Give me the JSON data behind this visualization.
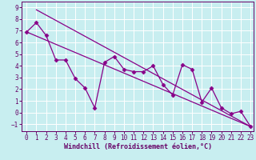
{
  "title": "",
  "xlabel": "Windchill (Refroidissement éolien,°C)",
  "ylabel": "",
  "bg_color": "#c8eef0",
  "line_color": "#880088",
  "grid_color": "#ffffff",
  "xlim": [
    -0.5,
    23.3
  ],
  "ylim": [
    -1.6,
    9.5
  ],
  "xticks": [
    0,
    1,
    2,
    3,
    4,
    5,
    6,
    7,
    8,
    9,
    10,
    11,
    12,
    13,
    14,
    15,
    16,
    17,
    18,
    19,
    20,
    21,
    22,
    23
  ],
  "yticks": [
    -1,
    0,
    1,
    2,
    3,
    4,
    5,
    6,
    7,
    8,
    9
  ],
  "series1_x": [
    0,
    1,
    2,
    3,
    4,
    5,
    6,
    7,
    8,
    9,
    10,
    11,
    12,
    13,
    14,
    15,
    16,
    17,
    18,
    19,
    20,
    21,
    22,
    23
  ],
  "series1_y": [
    6.9,
    7.7,
    6.6,
    4.5,
    4.5,
    2.9,
    2.1,
    0.4,
    4.3,
    4.8,
    3.7,
    3.5,
    3.5,
    4.0,
    2.4,
    1.5,
    4.1,
    3.7,
    0.9,
    2.1,
    0.4,
    -0.1,
    0.1,
    -1.2
  ],
  "series2_x": [
    0,
    23
  ],
  "series2_y": [
    6.9,
    -1.2
  ],
  "series3_x": [
    1,
    23
  ],
  "series3_y": [
    8.8,
    -1.2
  ],
  "tick_color": "#660066",
  "tick_fontsize": 5.5,
  "xlabel_fontsize": 6.0
}
